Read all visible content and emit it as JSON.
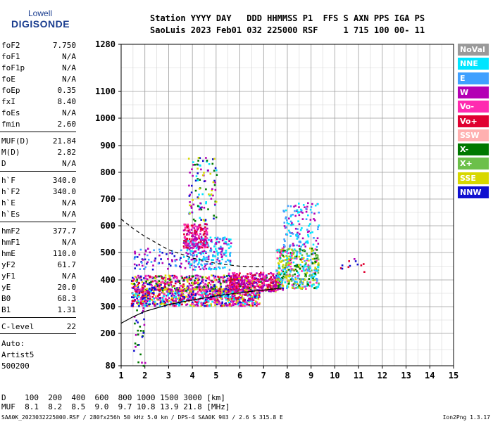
{
  "logo": {
    "line1": "Lowell",
    "line2": "DIGISONDE"
  },
  "header": {
    "row1": "Station YYYY DAY   DDD HHMMSS P1  FFS S AXN PPS IGA PS",
    "row2": "SaoLuis 2023 Feb01 032 225000 RSF     1 715 100 00- 11"
  },
  "params": [
    {
      "name": "foF2",
      "value": "7.750"
    },
    {
      "name": "foF1",
      "value": "N/A"
    },
    {
      "name": "foF1p",
      "value": "N/A"
    },
    {
      "name": "foE",
      "value": "N/A"
    },
    {
      "name": "foEp",
      "value": "0.35"
    },
    {
      "name": "fxI",
      "value": "8.40"
    },
    {
      "name": "foEs",
      "value": "N/A"
    },
    {
      "name": "fmin",
      "value": "2.60"
    },
    {
      "name": "MUF(D)",
      "value": "21.84"
    },
    {
      "name": "M(D)",
      "value": "2.82"
    },
    {
      "name": "D",
      "value": "N/A"
    },
    {
      "name": "h`F",
      "value": "340.0"
    },
    {
      "name": "h`F2",
      "value": "340.0"
    },
    {
      "name": "h`E",
      "value": "N/A"
    },
    {
      "name": "h`Es",
      "value": "N/A"
    },
    {
      "name": "hmF2",
      "value": "377.7"
    },
    {
      "name": "hmF1",
      "value": "N/A"
    },
    {
      "name": "hmE",
      "value": "110.0"
    },
    {
      "name": "yF2",
      "value": "61.7"
    },
    {
      "name": "yF1",
      "value": "N/A"
    },
    {
      "name": "yE",
      "value": "20.0"
    },
    {
      "name": "B0",
      "value": "68.3"
    },
    {
      "name": "B1",
      "value": "1.31"
    },
    {
      "name": "C-level",
      "value": "22"
    }
  ],
  "auto": {
    "l1": "Auto:",
    "l2": "Artist5",
    "l3": "500200"
  },
  "legend": [
    {
      "label": "NoVal",
      "color": "#9a9a9a"
    },
    {
      "label": "NNE",
      "color": "#00e5ff"
    },
    {
      "label": "E",
      "color": "#3fa0ff"
    },
    {
      "label": "W",
      "color": "#b400b4"
    },
    {
      "label": "Vo-",
      "color": "#ff2bb0"
    },
    {
      "label": "Vo+",
      "color": "#e00030"
    },
    {
      "label": "SSW",
      "color": "#ffb0b0"
    },
    {
      "label": "X-",
      "color": "#007800"
    },
    {
      "label": "X+",
      "color": "#6cc04a"
    },
    {
      "label": "SSE",
      "color": "#d8d800"
    },
    {
      "label": "NNW",
      "color": "#1010d0"
    }
  ],
  "bottom": {
    "row1": "D    100  200  400  600  800 1000 1500 3000 [km]",
    "row2": "MUF  8.1  8.2  8.5  9.0  9.7 10.8 13.9 21.8 [MHz]"
  },
  "footer": {
    "left": "SAA0K_2023032225000.RSF / 280fx256h 50 kHz 5.0 km / DPS-4 SAA0K 903 / 2.6 S 315.8 E",
    "right": "Ion2Png 1.3.17"
  },
  "chart_data": {
    "type": "scatter",
    "x_ticks": [
      1,
      2,
      3,
      4,
      5,
      6,
      7,
      8,
      9,
      10,
      11,
      12,
      13,
      14,
      15
    ],
    "y_ticks": [
      80,
      200,
      300,
      400,
      500,
      600,
      700,
      800,
      900,
      1000,
      1100,
      1280
    ],
    "xlim": [
      1,
      15
    ],
    "ylim": [
      80,
      1280
    ],
    "grid": true,
    "clusters": [
      {
        "x": [
          1.4,
          6.8
        ],
        "y": [
          305,
          370
        ],
        "n": 900,
        "colors": [
          "#b400b4",
          "#1010d0",
          "#e00030",
          "#ff2bb0",
          "#d8d800",
          "#00e5ff"
        ]
      },
      {
        "x": [
          1.4,
          7.8
        ],
        "y": [
          360,
          420
        ],
        "n": 650,
        "colors": [
          "#b400b4",
          "#1010d0",
          "#e00030",
          "#ff2bb0",
          "#007800",
          "#d8d800"
        ]
      },
      {
        "x": [
          5.5,
          7.6
        ],
        "y": [
          360,
          430
        ],
        "n": 260,
        "colors": [
          "#e00030",
          "#ff2bb0",
          "#b400b4"
        ]
      },
      {
        "x": [
          7.5,
          9.3
        ],
        "y": [
          370,
          520
        ],
        "n": 420,
        "colors": [
          "#d8d800",
          "#00e5ff",
          "#3fa0ff",
          "#ff2bb0",
          "#007800",
          "#6cc04a"
        ]
      },
      {
        "x": [
          7.8,
          9.3
        ],
        "y": [
          520,
          690
        ],
        "n": 130,
        "colors": [
          "#00e5ff",
          "#3fa0ff",
          "#b400b4"
        ]
      },
      {
        "x": [
          3.6,
          5.6
        ],
        "y": [
          440,
          560
        ],
        "n": 260,
        "colors": [
          "#3fa0ff",
          "#00e5ff",
          "#b400b4"
        ]
      },
      {
        "x": [
          3.6,
          4.6
        ],
        "y": [
          520,
          610
        ],
        "n": 160,
        "colors": [
          "#ff2bb0",
          "#b400b4",
          "#e00030"
        ]
      },
      {
        "x": [
          3.8,
          5.0
        ],
        "y": [
          620,
          860
        ],
        "n": 110,
        "colors": [
          "#b400b4",
          "#d8d800",
          "#007800",
          "#1010d0",
          "#00e5ff"
        ]
      },
      {
        "x": [
          1.5,
          3.5
        ],
        "y": [
          440,
          520
        ],
        "n": 70,
        "colors": [
          "#3fa0ff",
          "#1010d0",
          "#b400b4"
        ]
      },
      {
        "x": [
          1.5,
          2.0
        ],
        "y": [
          80,
          300
        ],
        "n": 30,
        "colors": [
          "#1010d0",
          "#b400b4",
          "#007800"
        ]
      },
      {
        "x": [
          10.2,
          11.3
        ],
        "y": [
          430,
          480
        ],
        "n": 12,
        "colors": [
          "#e00030",
          "#b400b4",
          "#1010d0"
        ]
      }
    ],
    "curve_solid": {
      "x": [
        1,
        1.5,
        2,
        3,
        4,
        5,
        6,
        7,
        7.8
      ],
      "y": [
        238,
        262,
        282,
        308,
        325,
        340,
        352,
        362,
        370
      ]
    },
    "curve_dashed": {
      "x": [
        1,
        1.5,
        2,
        2.5,
        3,
        4,
        5,
        6,
        7
      ],
      "y": [
        625,
        590,
        560,
        535,
        510,
        480,
        460,
        450,
        448
      ]
    }
  }
}
